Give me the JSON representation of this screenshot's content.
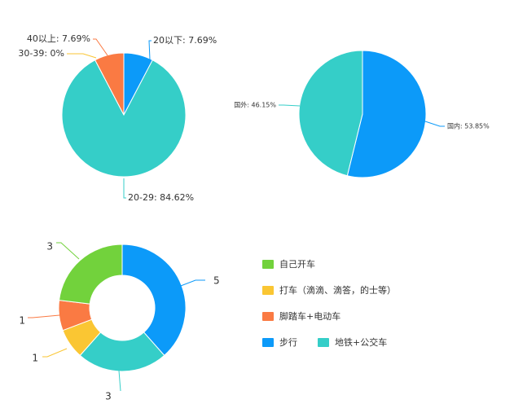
{
  "chart_data": [
    {
      "type": "pie",
      "categories": [
        "20以下",
        "20-29",
        "30-39",
        "40以上"
      ],
      "values": [
        7.69,
        84.62,
        0,
        7.69
      ],
      "labels": [
        "20以下: 7.69%",
        "20-29: 84.62%",
        "30-39: 0%",
        "40以上: 7.69%"
      ],
      "colors": [
        "#0c9af9",
        "#35cec8",
        "#fac633",
        "#fa7a43"
      ]
    },
    {
      "type": "pie",
      "categories": [
        "国内",
        "国外"
      ],
      "values": [
        53.85,
        46.15
      ],
      "labels": [
        "国内: 53.85%",
        "国外: 46.15%"
      ],
      "colors": [
        "#0c9af9",
        "#35cec8"
      ]
    },
    {
      "type": "pie",
      "variant": "donut",
      "categories": [
        "步行",
        "地铁+公交车",
        "打车（滴滴、滴答，的士等）",
        "脚踏车+电动车",
        "自己开车"
      ],
      "values": [
        5,
        3,
        1,
        1,
        3
      ],
      "labels": [
        "5",
        "3",
        "1",
        "1",
        "3"
      ],
      "colors": [
        "#0c9af9",
        "#35cec8",
        "#fac633",
        "#fa7a43",
        "#72d23c"
      ],
      "legend": {
        "placement": "right",
        "items": [
          {
            "name": "自己开车",
            "color": "#72d23c"
          },
          {
            "name": "打车（滴滴、滴答，的士等）",
            "color": "#fac633"
          },
          {
            "name": "脚踏车+电动车",
            "color": "#fa7a43"
          },
          {
            "name": "步行",
            "color": "#0c9af9"
          },
          {
            "name": "地铁+公交车",
            "color": "#35cec8"
          }
        ]
      }
    }
  ]
}
